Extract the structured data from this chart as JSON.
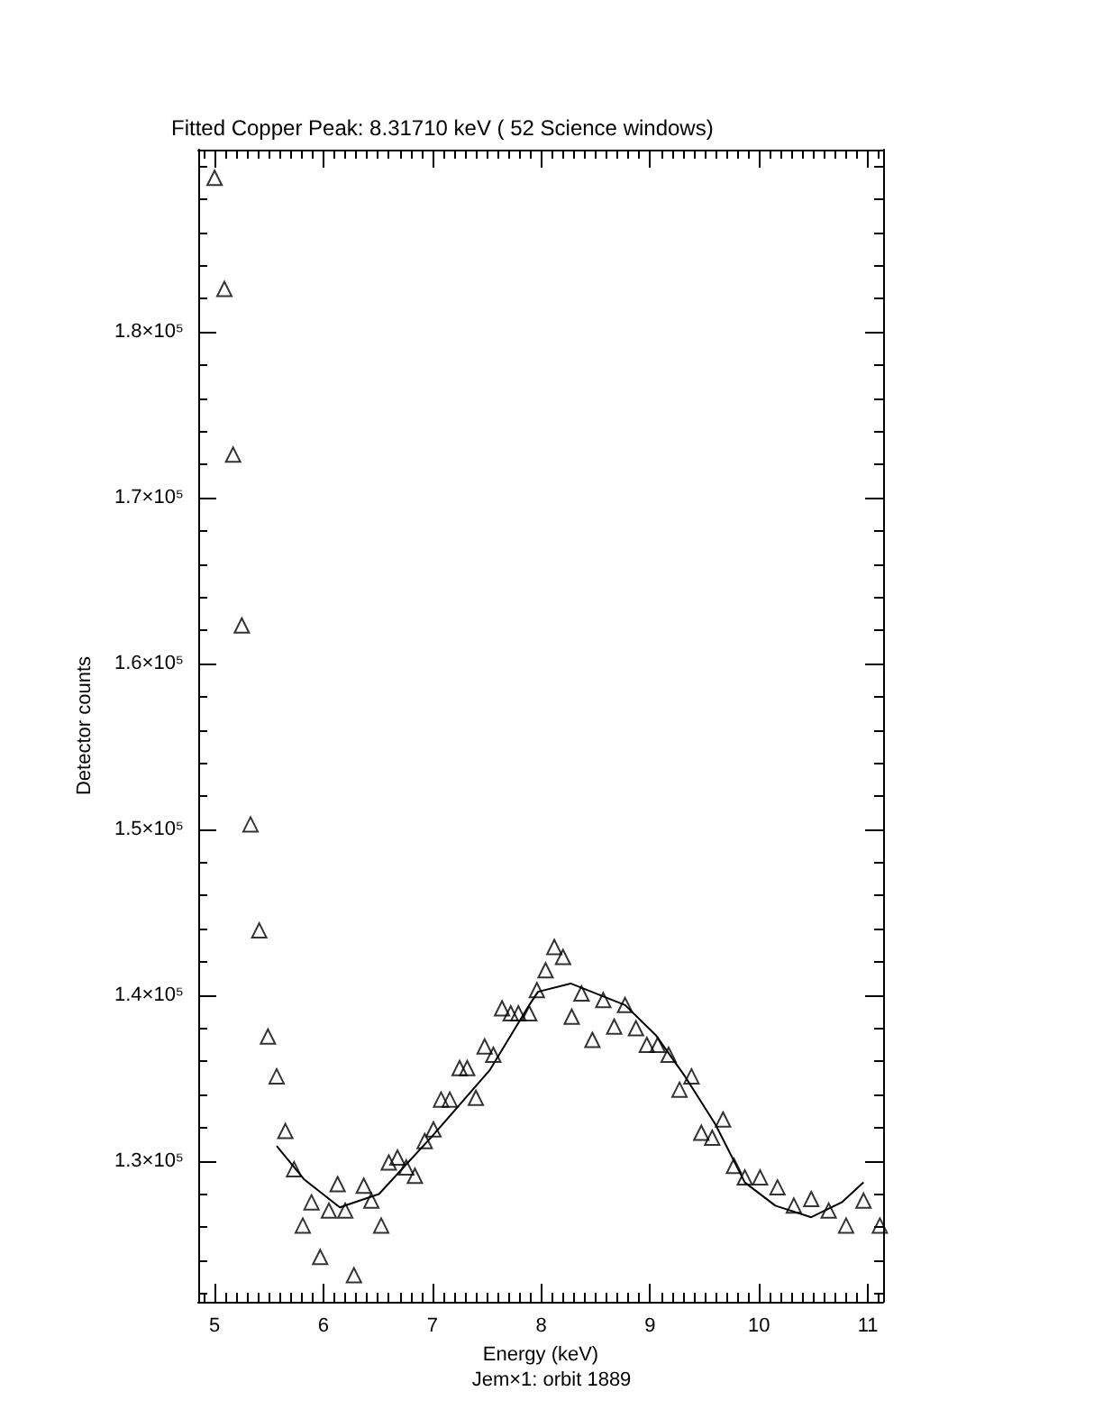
{
  "chart_data": {
    "type": "scatter",
    "title": "Fitted Copper Peak: 8.31710 keV ( 52 Science windows)",
    "xlabel": "Energy (keV)",
    "ylabel": "Detector counts",
    "annotations": [
      "Jem×1: orbit 1889"
    ],
    "xlim": [
      4.85,
      11.14
    ],
    "ylim": [
      121500,
      191000
    ],
    "xticks": [
      {
        "value": 4.9,
        "label": null
      },
      5,
      {
        "value": 5.1,
        "label": null
      },
      {
        "value": 5.2,
        "label": null
      },
      {
        "value": 5.3,
        "label": null
      },
      {
        "value": 5.4,
        "label": null
      },
      {
        "value": 5.5,
        "label": null
      },
      {
        "value": 5.6,
        "label": null
      },
      {
        "value": 5.7,
        "label": null
      },
      {
        "value": 5.8,
        "label": null
      },
      {
        "value": 5.9,
        "label": null
      },
      6,
      {
        "value": 6.1,
        "label": null
      },
      {
        "value": 6.2,
        "label": null
      },
      {
        "value": 6.3,
        "label": null
      },
      {
        "value": 6.4,
        "label": null
      },
      {
        "value": 6.5,
        "label": null
      },
      {
        "value": 6.6,
        "label": null
      },
      {
        "value": 6.7,
        "label": null
      },
      {
        "value": 6.8,
        "label": null
      },
      {
        "value": 6.9,
        "label": null
      },
      7,
      {
        "value": 7.1,
        "label": null
      },
      {
        "value": 7.2,
        "label": null
      },
      {
        "value": 7.3,
        "label": null
      },
      {
        "value": 7.4,
        "label": null
      },
      {
        "value": 7.5,
        "label": null
      },
      {
        "value": 7.6,
        "label": null
      },
      {
        "value": 7.7,
        "label": null
      },
      {
        "value": 7.8,
        "label": null
      },
      {
        "value": 7.9,
        "label": null
      },
      8,
      {
        "value": 8.1,
        "label": null
      },
      {
        "value": 8.2,
        "label": null
      },
      {
        "value": 8.3,
        "label": null
      },
      {
        "value": 8.4,
        "label": null
      },
      {
        "value": 8.5,
        "label": null
      },
      {
        "value": 8.6,
        "label": null
      },
      {
        "value": 8.7,
        "label": null
      },
      {
        "value": 8.8,
        "label": null
      },
      {
        "value": 8.9,
        "label": null
      },
      9,
      {
        "value": 9.1,
        "label": null
      },
      {
        "value": 9.2,
        "label": null
      },
      {
        "value": 9.3,
        "label": null
      },
      {
        "value": 9.4,
        "label": null
      },
      {
        "value": 9.5,
        "label": null
      },
      {
        "value": 9.6,
        "label": null
      },
      {
        "value": 9.7,
        "label": null
      },
      {
        "value": 9.8,
        "label": null
      },
      {
        "value": 9.9,
        "label": null
      },
      10,
      {
        "value": 10.1,
        "label": null
      },
      {
        "value": 10.2,
        "label": null
      },
      {
        "value": 10.3,
        "label": null
      },
      {
        "value": 10.4,
        "label": null
      },
      {
        "value": 10.5,
        "label": null
      },
      {
        "value": 10.6,
        "label": null
      },
      {
        "value": 10.7,
        "label": null
      },
      {
        "value": 10.8,
        "label": null
      },
      {
        "value": 10.9,
        "label": null
      },
      11,
      {
        "value": 11.1,
        "label": null
      }
    ],
    "yticks": [
      {
        "value": 122000,
        "label": null
      },
      {
        "value": 124000,
        "label": null
      },
      {
        "value": 126000,
        "label": null
      },
      {
        "value": 128000,
        "label": null
      },
      {
        "value": 130000,
        "label": "1.3×10⁵"
      },
      {
        "value": 132000,
        "label": null
      },
      {
        "value": 134000,
        "label": null
      },
      {
        "value": 136000,
        "label": null
      },
      {
        "value": 138000,
        "label": null
      },
      {
        "value": 140000,
        "label": "1.4×10⁵"
      },
      {
        "value": 142000,
        "label": null
      },
      {
        "value": 144000,
        "label": null
      },
      {
        "value": 146000,
        "label": null
      },
      {
        "value": 148000,
        "label": null
      },
      {
        "value": 150000,
        "label": "1.5×10⁵"
      },
      {
        "value": 152000,
        "label": null
      },
      {
        "value": 154000,
        "label": null
      },
      {
        "value": 156000,
        "label": null
      },
      {
        "value": 158000,
        "label": null
      },
      {
        "value": 160000,
        "label": "1.6×10⁵"
      },
      {
        "value": 162000,
        "label": null
      },
      {
        "value": 164000,
        "label": null
      },
      {
        "value": 166000,
        "label": null
      },
      {
        "value": 168000,
        "label": null
      },
      {
        "value": 170000,
        "label": "1.7×10⁵"
      },
      {
        "value": 172000,
        "label": null
      },
      {
        "value": 174000,
        "label": null
      },
      {
        "value": 176000,
        "label": null
      },
      {
        "value": 178000,
        "label": null
      },
      {
        "value": 180000,
        "label": "1.8×10⁵"
      },
      {
        "value": 182000,
        "label": null
      },
      {
        "value": 184000,
        "label": null
      },
      {
        "value": 186000,
        "label": null
      },
      {
        "value": 188000,
        "label": null
      },
      {
        "value": 190000,
        "label": null
      }
    ],
    "grid": false,
    "series": [
      {
        "color": "#000000",
        "marker": "triangle",
        "x": [
          5.0,
          5.09,
          5.17,
          5.25,
          5.33,
          5.41,
          5.49,
          5.57,
          5.65,
          5.73,
          5.81,
          5.89,
          5.97,
          6.05,
          6.13,
          6.2,
          6.28,
          6.37,
          6.44,
          6.53,
          6.6,
          6.68,
          6.76,
          6.84,
          6.93,
          7.01,
          7.08,
          7.16,
          7.25,
          7.32,
          7.4,
          7.48,
          7.56,
          7.64,
          7.72,
          7.79,
          7.89,
          7.96,
          8.04,
          8.12,
          8.2,
          8.28,
          8.37,
          8.47,
          8.57,
          8.67,
          8.77,
          8.87,
          8.97,
          9.07,
          9.17,
          9.27,
          9.38,
          9.47,
          9.57,
          9.67,
          9.77,
          9.87,
          10.01,
          10.17,
          10.32,
          10.48,
          10.64,
          10.8,
          10.96,
          11.11
        ],
        "values": [
          189300,
          182600,
          172600,
          162300,
          150300,
          143900,
          137500,
          135100,
          131800,
          129500,
          126100,
          127500,
          124200,
          127000,
          128600,
          127000,
          123100,
          128500,
          127600,
          126100,
          129900,
          130200,
          129600,
          129100,
          131200,
          131900,
          133700,
          133700,
          135600,
          135600,
          133800,
          136900,
          136400,
          139200,
          138900,
          138900,
          138900,
          140300,
          141500,
          142900,
          142300,
          138700,
          140100,
          137300,
          139700,
          138100,
          139400,
          138000,
          137000,
          137000,
          136400,
          134300,
          135100,
          131700,
          131400,
          132500,
          129700,
          129000,
          129000,
          128400,
          127300,
          127700,
          127000,
          126100,
          127600,
          126100
        ]
      },
      {
        "type": "line",
        "color": "#000000",
        "marker": "none",
        "line_style": "solid",
        "x": [
          5.57,
          5.82,
          6.15,
          6.51,
          7.0,
          7.53,
          7.89,
          7.97,
          8.27,
          8.77,
          9.05,
          9.32,
          9.6,
          9.87,
          10.15,
          10.48,
          10.76,
          10.96
        ],
        "values": [
          130900,
          128900,
          127200,
          128000,
          131500,
          135500,
          139400,
          140200,
          140700,
          139400,
          137600,
          135100,
          132200,
          128700,
          127300,
          126600,
          127500,
          128700
        ]
      }
    ]
  }
}
